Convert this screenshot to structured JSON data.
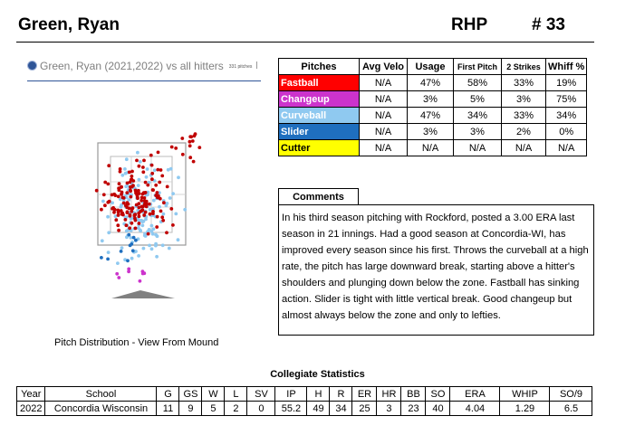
{
  "header": {
    "name": "Green, Ryan",
    "throws": "RHP",
    "jersey": "# 33"
  },
  "legend": {
    "label": "Green, Ryan (2021,2022) vs all hitters",
    "count": "331 pitches"
  },
  "pitch_table": {
    "headers": [
      "Pitches",
      "Avg Velo",
      "Usage",
      "First Pitch",
      "2 Strikes",
      "Whiff %"
    ],
    "rows": [
      {
        "name": "Fastball",
        "color": "#ff0000",
        "text_color": "#ffffff",
        "values": [
          "N/A",
          "47%",
          "58%",
          "33%",
          "19%"
        ]
      },
      {
        "name": "Changeup",
        "color": "#cc33cc",
        "text_color": "#ffffff",
        "values": [
          "N/A",
          "3%",
          "5%",
          "3%",
          "75%"
        ]
      },
      {
        "name": "Curveball",
        "color": "#8fc9f0",
        "text_color": "#ffffff",
        "values": [
          "N/A",
          "47%",
          "34%",
          "33%",
          "34%"
        ]
      },
      {
        "name": "Slider",
        "color": "#1f6fbf",
        "text_color": "#ffffff",
        "values": [
          "N/A",
          "3%",
          "3%",
          "2%",
          "0%"
        ]
      },
      {
        "name": "Cutter",
        "color": "#ffff00",
        "text_color": "#000000",
        "values": [
          "N/A",
          "N/A",
          "N/A",
          "N/A",
          "N/A"
        ]
      }
    ]
  },
  "comments": {
    "title": "Comments",
    "text": "In his third season pitching with Rockford, posted a 3.00 ERA last season in 21 innings. Had a good season at Concordia-WI, has improved every season since his first. Throws the curveball at a high rate, the pitch has large downward break, starting above a hitter's shoulders and plunging down below the zone. Fastball has sinking action. Slider is tight with little vertical break. Good changeup but almost always below the zone and only to lefties."
  },
  "plot": {
    "caption": "Pitch Distribution - View From Mound",
    "colors": {
      "fastball": "#c00000",
      "changeup": "#cc33cc",
      "curveball": "#8fc9f0",
      "slider": "#1f6fbf",
      "plate": "#808080"
    }
  },
  "stats": {
    "title": "Collegiate Statistics",
    "headers": [
      "Year",
      "School",
      "G",
      "GS",
      "W",
      "L",
      "SV",
      "IP",
      "H",
      "R",
      "ER",
      "HR",
      "BB",
      "SO",
      "ERA",
      "WHIP",
      "SO/9"
    ],
    "rows": [
      [
        "2022",
        "Concordia Wisconsin",
        "11",
        "9",
        "5",
        "2",
        "0",
        "55.2",
        "49",
        "34",
        "25",
        "3",
        "23",
        "40",
        "4.04",
        "1.29",
        "6.5"
      ]
    ]
  }
}
